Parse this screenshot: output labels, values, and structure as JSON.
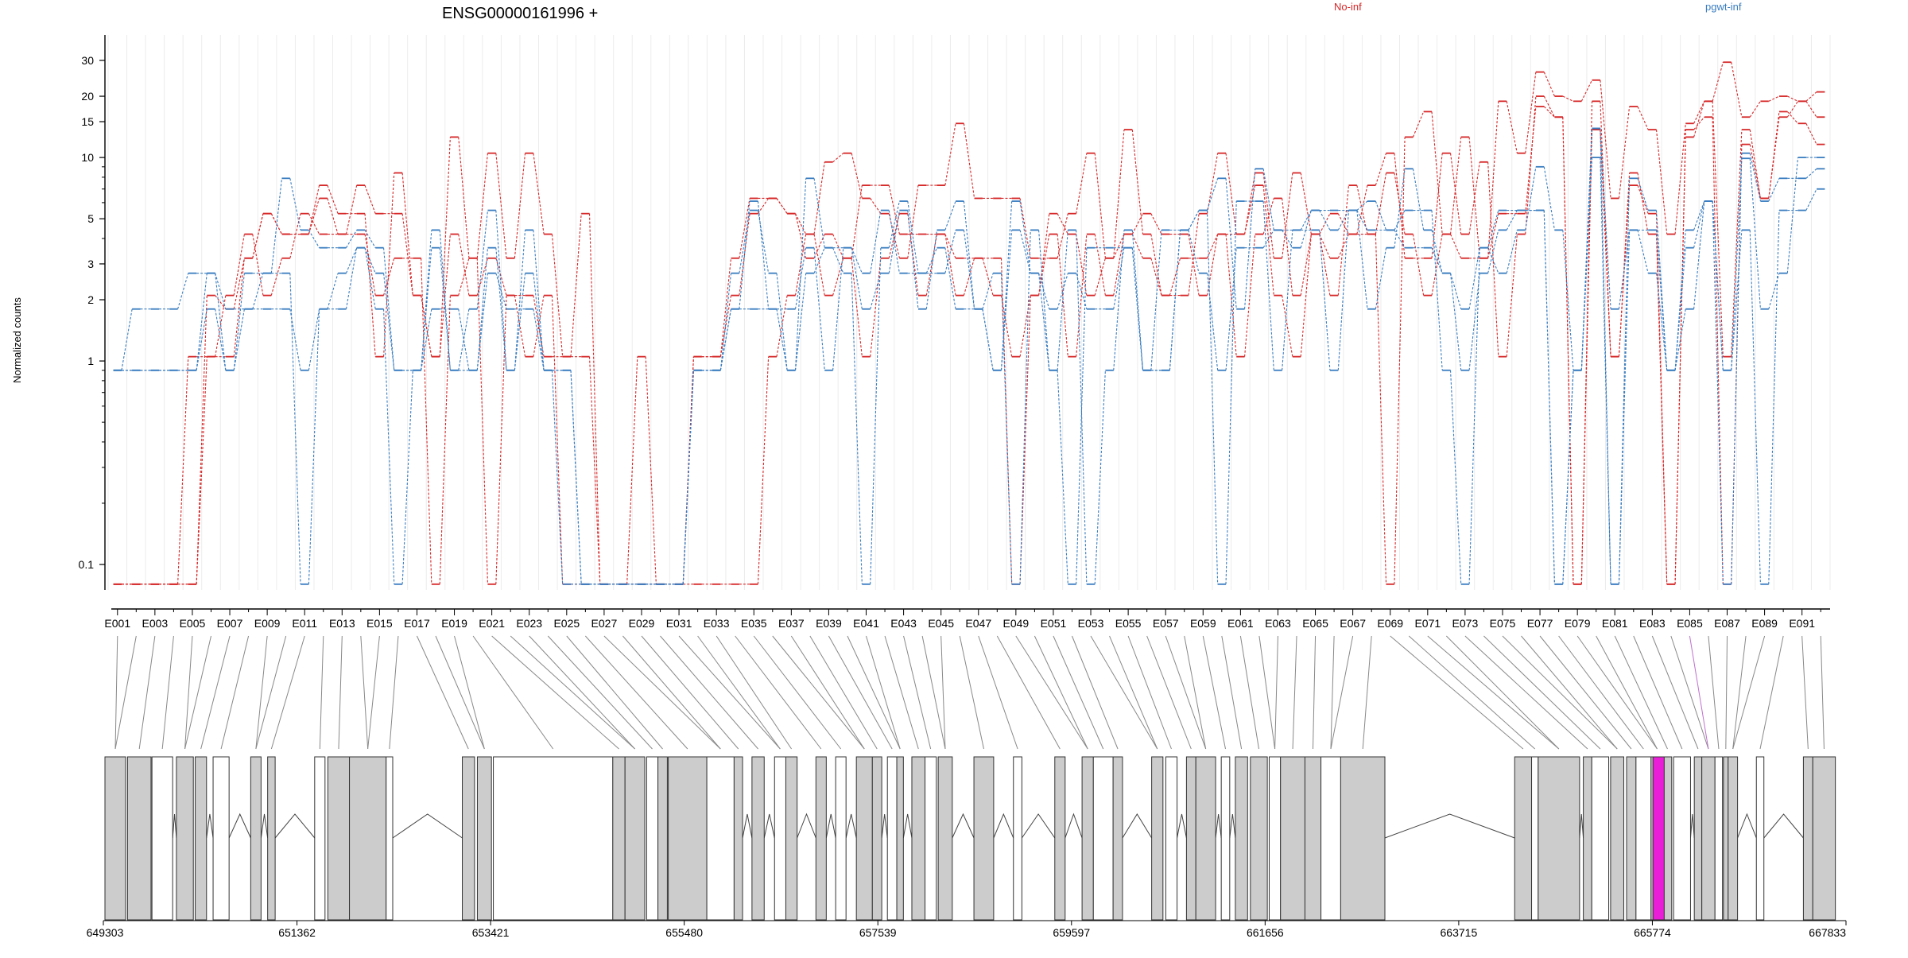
{
  "chart_data": {
    "type": "line",
    "title": "ENSG00000161996 +",
    "ylabel": "Normalized counts",
    "y_scale": "log",
    "y_ticks": [
      0.1,
      1,
      2,
      3,
      5,
      10,
      15,
      20,
      30
    ],
    "y_tick_labels": [
      "0.1",
      "1",
      "2",
      "3",
      "5",
      "10",
      "15",
      "20",
      "30"
    ],
    "x_tick_labels": [
      "E001",
      "E003",
      "E005",
      "E007",
      "E009",
      "E011",
      "E013",
      "E015",
      "E017",
      "E019",
      "E021",
      "E023",
      "E025",
      "E027",
      "E029",
      "E031",
      "E033",
      "E035",
      "E037",
      "E039",
      "E041",
      "E043",
      "E045",
      "E047",
      "E049",
      "E051",
      "E053",
      "E055",
      "E057",
      "E059",
      "E061",
      "E063",
      "E065",
      "E067",
      "E069",
      "E071",
      "E073",
      "E075",
      "E077",
      "E079",
      "E081",
      "E083",
      "E085",
      "E087",
      "E089",
      "E091"
    ],
    "n_exons": 92,
    "legend": [
      {
        "name": "No-inf",
        "color": "#d62728"
      },
      {
        "name": "pgwt-inf",
        "color": "#3a7dc0"
      }
    ],
    "series": [
      {
        "name": "No-inf",
        "values": [
          0.08,
          0.08,
          0.08,
          0.08,
          1.05,
          1.05,
          2.1,
          4.2,
          2.1,
          3.2,
          5.3,
          4.2,
          4.2,
          7.3,
          5.3,
          5.3,
          2.1,
          1.05,
          12.6,
          3.2,
          10.5,
          3.2,
          10.5,
          4.2,
          1.05,
          5.3,
          0.08,
          0.08,
          1.05,
          0.08,
          0.08,
          0.08,
          0.08,
          0.08,
          0.08,
          1.05,
          2.1,
          4.2,
          9.5,
          10.5,
          6.3,
          5.3,
          3.2,
          7.3,
          7.3,
          14.7,
          6.3,
          6.3,
          6.3,
          3.2,
          3.2,
          5.3,
          10.5,
          3.2,
          13.7,
          4.2,
          2.1,
          2.1,
          5.3,
          10.5,
          4.2,
          8.4,
          3.2,
          8.4,
          4.2,
          2.1,
          7.3,
          4.2,
          0.08,
          12.6,
          16.8,
          4.2,
          12.6,
          3.2,
          18.9,
          10.5,
          26.3,
          20.0,
          18.9,
          24.0,
          6.3,
          17.8,
          13.7,
          4.2,
          14.7,
          18.9,
          29.4,
          15.8,
          18.9,
          20.0,
          18.9,
          21.0
        ]
      },
      {
        "name": "No-inf",
        "values": [
          0.08,
          0.08,
          0.08,
          0.08,
          0.08,
          2.1,
          1.8,
          3.2,
          5.3,
          4.2,
          4.2,
          7.3,
          5.3,
          5.3,
          1.05,
          8.4,
          2.1,
          1.05,
          4.2,
          2.1,
          3.2,
          2.1,
          2.1,
          1.05,
          1.05,
          1.05,
          0.08,
          0.08,
          0.08,
          0.08,
          0.08,
          1.05,
          1.05,
          3.2,
          6.3,
          6.3,
          5.3,
          4.2,
          2.1,
          3.2,
          7.3,
          7.3,
          4.2,
          4.2,
          4.2,
          2.1,
          3.2,
          2.1,
          1.05,
          2.1,
          4.2,
          1.05,
          4.2,
          2.1,
          4.2,
          5.3,
          4.2,
          4.2,
          2.1,
          4.2,
          4.2,
          7.3,
          2.1,
          1.05,
          4.2,
          5.3,
          4.2,
          7.3,
          10.5,
          3.2,
          3.2,
          10.5,
          4.2,
          9.5,
          1.05,
          4.2,
          20.0,
          15.8,
          0.08,
          13.7,
          1.05,
          8.4,
          4.2,
          0.08,
          12.6,
          18.9,
          1.05,
          13.7,
          6.3,
          15.8,
          18.9,
          15.8
        ]
      },
      {
        "name": "No-inf",
        "values": [
          0.08,
          0.08,
          0.08,
          0.08,
          0.08,
          1.05,
          1.05,
          3.2,
          5.3,
          4.2,
          4.2,
          6.3,
          4.2,
          4.2,
          2.1,
          3.2,
          3.2,
          0.08,
          2.1,
          3.2,
          0.08,
          2.1,
          1.05,
          2.1,
          0.08,
          0.08,
          0.08,
          0.08,
          0.08,
          0.08,
          0.08,
          1.05,
          1.05,
          2.1,
          5.3,
          6.3,
          5.3,
          3.2,
          4.2,
          3.2,
          1.05,
          3.2,
          5.3,
          2.1,
          4.2,
          3.2,
          3.2,
          3.2,
          0.08,
          2.1,
          5.3,
          4.2,
          2.1,
          3.2,
          4.2,
          3.2,
          2.1,
          3.2,
          3.2,
          4.2,
          1.05,
          4.2,
          6.3,
          2.1,
          4.2,
          3.2,
          4.2,
          4.2,
          8.4,
          4.2,
          2.1,
          4.2,
          3.2,
          3.2,
          5.3,
          5.3,
          17.8,
          15.8,
          0.08,
          18.9,
          1.05,
          7.3,
          5.3,
          0.08,
          13.7,
          15.8,
          0.08,
          11.6,
          6.3,
          16.8,
          14.7,
          11.6
        ]
      },
      {
        "name": "pgwt-inf",
        "values": [
          0.9,
          1.8,
          1.8,
          1.8,
          2.7,
          2.7,
          0.9,
          1.8,
          2.7,
          7.9,
          4.4,
          3.6,
          3.6,
          4.4,
          3.6,
          0.9,
          0.9,
          4.4,
          0.9,
          1.8,
          5.5,
          0.9,
          4.4,
          0.9,
          0.08,
          0.08,
          0.08,
          0.08,
          0.08,
          0.08,
          0.08,
          0.9,
          0.9,
          2.7,
          5.5,
          2.7,
          0.9,
          7.9,
          3.6,
          3.6,
          1.8,
          2.7,
          5.5,
          1.8,
          4.4,
          6.1,
          1.8,
          0.9,
          6.1,
          2.7,
          1.8,
          2.7,
          1.8,
          1.8,
          3.6,
          0.9,
          4.4,
          4.4,
          5.5,
          7.9,
          1.8,
          8.8,
          4.4,
          4.4,
          4.4,
          0.9,
          5.5,
          1.8,
          3.6,
          8.8,
          4.4,
          2.7,
          1.8,
          3.6,
          2.7,
          4.4,
          9.0,
          4.4,
          0.9,
          13.9,
          1.8,
          4.4,
          4.4,
          0.9,
          1.8,
          6.1,
          0.9,
          9.9,
          1.8,
          2.7,
          10.0,
          10.0
        ]
      },
      {
        "name": "pgwt-inf",
        "values": [
          0.9,
          0.9,
          0.9,
          0.9,
          0.9,
          1.8,
          0.9,
          2.7,
          2.7,
          2.7,
          0.08,
          1.8,
          2.7,
          3.6,
          2.7,
          0.9,
          0.9,
          3.6,
          0.9,
          0.9,
          3.6,
          0.9,
          2.7,
          0.9,
          0.9,
          0.08,
          0.08,
          0.08,
          0.08,
          0.08,
          0.08,
          0.9,
          0.9,
          1.8,
          1.8,
          1.8,
          1.8,
          3.6,
          0.9,
          3.6,
          2.7,
          5.5,
          2.7,
          2.7,
          3.6,
          1.8,
          1.8,
          0.9,
          4.4,
          2.7,
          0.9,
          0.08,
          3.6,
          3.6,
          3.6,
          0.9,
          0.9,
          4.4,
          2.7,
          0.9,
          3.6,
          3.6,
          4.4,
          3.6,
          5.5,
          4.4,
          5.5,
          4.4,
          4.4,
          3.6,
          3.6,
          2.7,
          0.9,
          2.7,
          4.4,
          5.5,
          5.5,
          0.08,
          0.9,
          10.0,
          0.08,
          4.4,
          2.7,
          0.9,
          3.6,
          6.1,
          0.9,
          4.4,
          0.08,
          5.5,
          5.5,
          7.0
        ]
      },
      {
        "name": "pgwt-inf",
        "values": [
          0.9,
          0.9,
          0.9,
          0.9,
          0.9,
          2.7,
          1.8,
          1.8,
          1.8,
          1.8,
          0.9,
          1.8,
          1.8,
          3.6,
          1.8,
          0.08,
          0.9,
          1.8,
          1.8,
          0.9,
          2.7,
          1.8,
          1.8,
          0.9,
          0.9,
          0.08,
          0.08,
          0.08,
          0.08,
          0.08,
          0.08,
          0.9,
          0.9,
          1.8,
          6.1,
          1.8,
          0.9,
          2.7,
          3.6,
          2.7,
          0.08,
          3.6,
          6.1,
          2.7,
          2.7,
          4.4,
          1.8,
          2.7,
          0.08,
          4.4,
          0.9,
          4.4,
          0.08,
          0.9,
          4.4,
          0.9,
          0.9,
          4.4,
          5.5,
          0.08,
          6.1,
          6.1,
          0.9,
          4.4,
          5.5,
          5.5,
          5.5,
          6.1,
          4.4,
          5.5,
          5.5,
          0.9,
          0.08,
          3.6,
          5.5,
          5.5,
          5.5,
          0.08,
          0.9,
          13.9,
          0.08,
          7.9,
          5.5,
          0.9,
          4.4,
          6.1,
          0.08,
          10.5,
          6.1,
          7.9,
          7.9,
          8.8
        ]
      }
    ],
    "genome_axis": {
      "min": 649303,
      "max": 667833,
      "tick_labels": [
        "649303",
        "651362",
        "653421",
        "655480",
        "657539",
        "659597",
        "661656",
        "663715",
        "665774",
        "667833"
      ]
    },
    "exon_model": {
      "exon_fill": "#cccccc",
      "highlight_fill": "#e81fd6",
      "highlight_exon": "E085",
      "blocks": [
        {
          "s": 649320,
          "e": 649540
        },
        {
          "s": 649560,
          "e": 649810
        },
        {
          "s": 649820,
          "e": 650040
        },
        {
          "s": 650080,
          "e": 650260
        },
        {
          "s": 650280,
          "e": 650400
        },
        {
          "s": 650470,
          "e": 650640
        },
        {
          "s": 650870,
          "e": 650980
        },
        {
          "s": 651050,
          "e": 651130
        },
        {
          "s": 651550,
          "e": 651660
        },
        {
          "s": 651690,
          "e": 651920
        },
        {
          "s": 651920,
          "e": 652310
        },
        {
          "s": 652310,
          "e": 652380
        },
        {
          "s": 653120,
          "e": 653250
        },
        {
          "s": 653280,
          "e": 653430
        },
        {
          "s": 653450,
          "e": 654720
        },
        {
          "s": 654720,
          "e": 654850
        },
        {
          "s": 654850,
          "e": 655060
        },
        {
          "s": 655080,
          "e": 655200
        },
        {
          "s": 655200,
          "e": 655300
        },
        {
          "s": 655310,
          "e": 655720
        },
        {
          "s": 655720,
          "e": 656010
        },
        {
          "s": 656010,
          "e": 656100
        },
        {
          "s": 656200,
          "e": 656330
        },
        {
          "s": 656440,
          "e": 656560
        },
        {
          "s": 656560,
          "e": 656680
        },
        {
          "s": 656880,
          "e": 656990
        },
        {
          "s": 657090,
          "e": 657200
        },
        {
          "s": 657310,
          "e": 657480
        },
        {
          "s": 657480,
          "e": 657580
        },
        {
          "s": 657640,
          "e": 657740
        },
        {
          "s": 657740,
          "e": 657810
        },
        {
          "s": 657900,
          "e": 658040
        },
        {
          "s": 658040,
          "e": 658160
        },
        {
          "s": 658180,
          "e": 658330
        },
        {
          "s": 658560,
          "e": 658770
        },
        {
          "s": 658980,
          "e": 659070
        },
        {
          "s": 659420,
          "e": 659530
        },
        {
          "s": 659710,
          "e": 659830
        },
        {
          "s": 659830,
          "e": 660040
        },
        {
          "s": 660040,
          "e": 660140
        },
        {
          "s": 660450,
          "e": 660570
        },
        {
          "s": 660600,
          "e": 660720
        },
        {
          "s": 660820,
          "e": 660920
        },
        {
          "s": 660920,
          "e": 661130
        },
        {
          "s": 661190,
          "e": 661280
        },
        {
          "s": 661340,
          "e": 661470
        },
        {
          "s": 661500,
          "e": 661680
        },
        {
          "s": 661700,
          "e": 661820
        },
        {
          "s": 661820,
          "e": 662080
        },
        {
          "s": 662080,
          "e": 662250
        },
        {
          "s": 662250,
          "e": 662460
        },
        {
          "s": 662460,
          "e": 662930
        },
        {
          "s": 664310,
          "e": 664490
        },
        {
          "s": 664490,
          "e": 664560
        },
        {
          "s": 664560,
          "e": 665000
        },
        {
          "s": 665040,
          "e": 665130
        },
        {
          "s": 665130,
          "e": 665310
        },
        {
          "s": 665330,
          "e": 665470
        },
        {
          "s": 665500,
          "e": 665600
        },
        {
          "s": 665600,
          "e": 665760
        },
        {
          "s": 665760,
          "e": 665890
        },
        {
          "s": 665890,
          "e": 665980
        },
        {
          "s": 666000,
          "e": 666180
        },
        {
          "s": 666220,
          "e": 666300
        },
        {
          "s": 666300,
          "e": 666440
        },
        {
          "s": 666440,
          "e": 666520
        },
        {
          "s": 666530,
          "e": 666580
        },
        {
          "s": 666580,
          "e": 666680
        },
        {
          "s": 666880,
          "e": 666960
        },
        {
          "s": 667380,
          "e": 667480
        },
        {
          "s": 667480,
          "e": 667720
        }
      ],
      "highlight_block": {
        "s": 665780,
        "e": 665900
      }
    }
  }
}
